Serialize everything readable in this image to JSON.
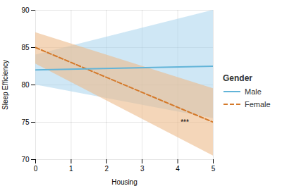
{
  "chart_data": {
    "type": "line",
    "xlabel": "Housing",
    "ylabel": "Sleep Efficiency",
    "x": [
      0,
      5
    ],
    "series": [
      {
        "name": "Male",
        "color": "#62B4D8",
        "line_style": "solid",
        "values": [
          82.0,
          82.5
        ],
        "ci_upper": [
          84.0,
          90.0
        ],
        "ci_lower": [
          80.0,
          75.5
        ],
        "ci_color": "#A8D4EC"
      },
      {
        "name": "Female",
        "color": "#D4792A",
        "line_style": "dashed",
        "values": [
          85.0,
          75.0
        ],
        "ci_upper": [
          87.0,
          79.5
        ],
        "ci_lower": [
          82.8,
          70.5
        ],
        "ci_color": "#EDBB8A"
      }
    ],
    "xlim": [
      0,
      5
    ],
    "ylim": [
      70,
      90
    ],
    "xticks": [
      0,
      1,
      2,
      3,
      4,
      5
    ],
    "yticks": [
      70,
      75,
      80,
      85,
      90
    ],
    "grid": true,
    "legend": "right",
    "legend_title": "Gender",
    "annotations": [
      {
        "text": "***",
        "x": 4.08,
        "y": 75.3
      }
    ]
  }
}
